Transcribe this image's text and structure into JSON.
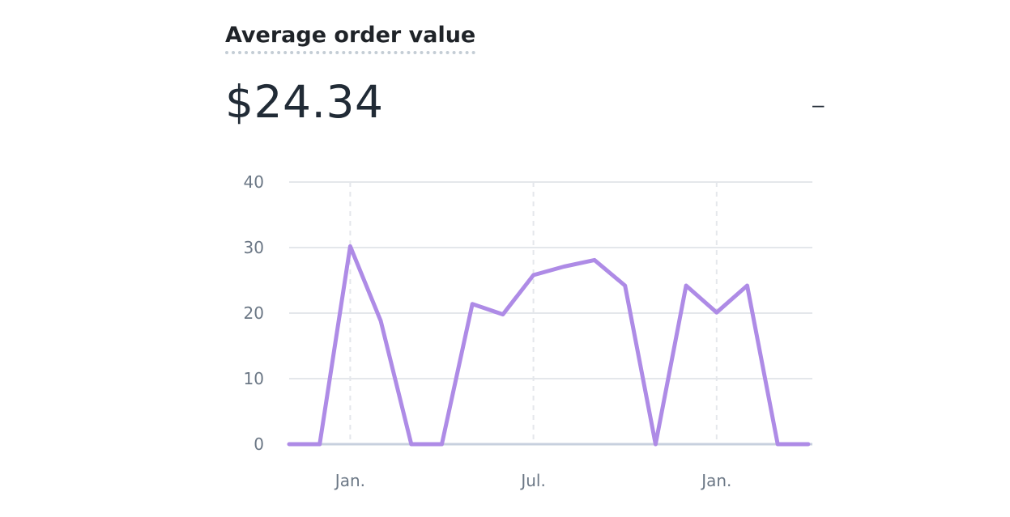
{
  "card": {
    "title": "Average order value",
    "value": "$24.34",
    "change": "–"
  },
  "colors": {
    "line": "#ae8be6",
    "grid": "#e4e7eb",
    "baseline": "#c7d0de",
    "tick_text": "#6b7785"
  },
  "chart_data": {
    "type": "line",
    "title": "",
    "xlabel": "",
    "ylabel": "",
    "ylim": [
      0,
      40
    ],
    "yticks": [
      "0",
      "10",
      "20",
      "30",
      "40"
    ],
    "xticks": [
      {
        "label": "Jan.",
        "index": 2
      },
      {
        "label": "Jul.",
        "index": 8
      },
      {
        "label": "Jan.",
        "index": 14
      }
    ],
    "grid": true,
    "series": [
      {
        "values": [
          0,
          0,
          30.2,
          18.8,
          0,
          0,
          21.4,
          19.8,
          25.8,
          27.1,
          28.1,
          24.2,
          0,
          24.2,
          20.1,
          24.2,
          0,
          0
        ]
      }
    ]
  }
}
